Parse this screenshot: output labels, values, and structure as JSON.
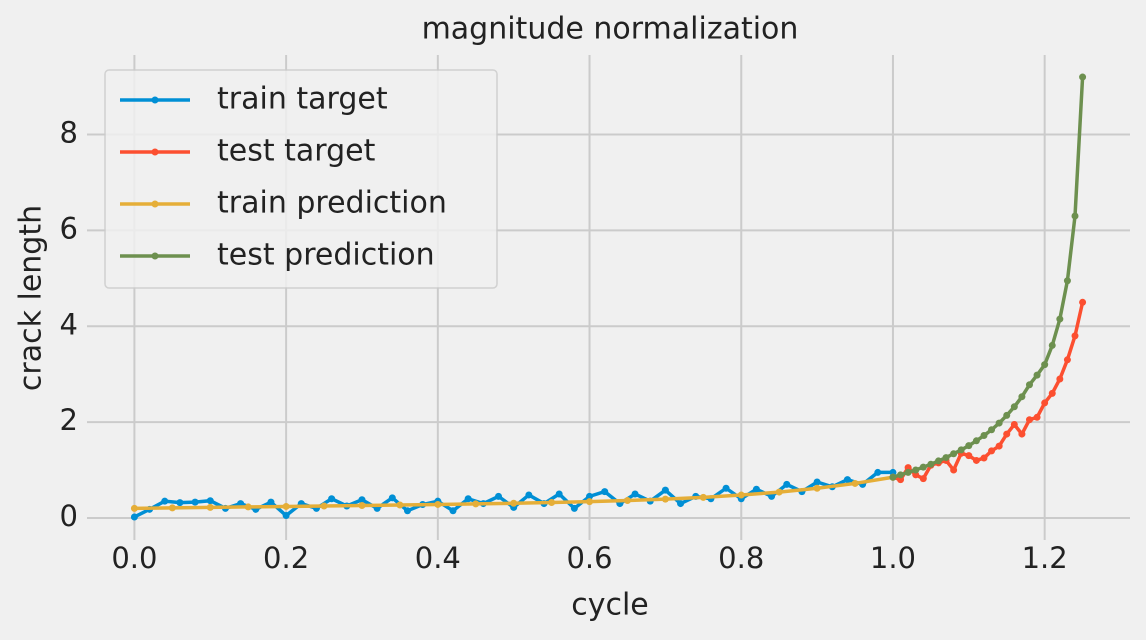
{
  "chart_data": {
    "type": "line",
    "title": "magnitude normalization",
    "x_label": "cycle",
    "y_label": "crack length",
    "xlim": [
      -0.0625,
      1.3125
    ],
    "ylim": [
      -0.46,
      9.66
    ],
    "xticks": [
      {
        "value": 0,
        "label": "0.0"
      },
      0.2,
      0.4,
      0.6,
      0.8,
      {
        "value": 1,
        "label": "1.0"
      },
      1.2
    ],
    "yticks": [
      0,
      2,
      4,
      6,
      8
    ],
    "grid": true,
    "legend": "upper left",
    "series": [
      {
        "name": "train target",
        "color": "#008fd5",
        "x": [
          0,
          0.02,
          0.04,
          0.06,
          0.08,
          0.1,
          0.12,
          0.14,
          0.16,
          0.18,
          0.2,
          0.22,
          0.24,
          0.26,
          0.28,
          0.3,
          0.32,
          0.34,
          0.36,
          0.38,
          0.4,
          0.42,
          0.44,
          0.46,
          0.48,
          0.5,
          0.52,
          0.54,
          0.56,
          0.58,
          0.6,
          0.62,
          0.64,
          0.66,
          0.68,
          0.7,
          0.72,
          0.74,
          0.76,
          0.78,
          0.8,
          0.82,
          0.84,
          0.86,
          0.88,
          0.9,
          0.92,
          0.94,
          0.96,
          0.98,
          1.0
        ],
        "values": [
          0.02,
          0.18,
          0.35,
          0.32,
          0.33,
          0.36,
          0.2,
          0.3,
          0.18,
          0.33,
          0.05,
          0.3,
          0.2,
          0.4,
          0.25,
          0.38,
          0.2,
          0.42,
          0.15,
          0.28,
          0.35,
          0.15,
          0.4,
          0.3,
          0.45,
          0.22,
          0.48,
          0.3,
          0.5,
          0.2,
          0.45,
          0.55,
          0.3,
          0.5,
          0.35,
          0.58,
          0.3,
          0.45,
          0.4,
          0.62,
          0.4,
          0.6,
          0.45,
          0.7,
          0.55,
          0.75,
          0.65,
          0.8,
          0.7,
          0.95,
          0.95
        ]
      },
      {
        "name": "test target",
        "color": "#fc4f30",
        "x": [
          1.0,
          1.01,
          1.02,
          1.03,
          1.04,
          1.05,
          1.06,
          1.07,
          1.08,
          1.09,
          1.1,
          1.11,
          1.12,
          1.13,
          1.14,
          1.15,
          1.16,
          1.17,
          1.18,
          1.19,
          1.2,
          1.21,
          1.22,
          1.23,
          1.24,
          1.25
        ],
        "values": [
          0.85,
          0.8,
          1.05,
          0.9,
          0.82,
          1.1,
          1.15,
          1.2,
          1.0,
          1.35,
          1.3,
          1.2,
          1.25,
          1.4,
          1.5,
          1.75,
          1.95,
          1.75,
          2.05,
          2.1,
          2.4,
          2.6,
          2.9,
          3.3,
          3.8,
          4.5
        ]
      },
      {
        "name": "train prediction",
        "color": "#e5ae38",
        "x": [
          0,
          0.05,
          0.1,
          0.15,
          0.2,
          0.25,
          0.3,
          0.35,
          0.4,
          0.45,
          0.5,
          0.55,
          0.6,
          0.65,
          0.7,
          0.75,
          0.8,
          0.85,
          0.9,
          0.95,
          1.0
        ],
        "values": [
          0.2,
          0.21,
          0.22,
          0.23,
          0.24,
          0.25,
          0.26,
          0.27,
          0.282,
          0.294,
          0.307,
          0.322,
          0.341,
          0.363,
          0.393,
          0.43,
          0.478,
          0.54,
          0.62,
          0.72,
          0.85
        ]
      },
      {
        "name": "test prediction",
        "color": "#6d904f",
        "x": [
          1.0,
          1.01,
          1.02,
          1.03,
          1.04,
          1.05,
          1.06,
          1.07,
          1.08,
          1.09,
          1.1,
          1.11,
          1.12,
          1.13,
          1.14,
          1.15,
          1.16,
          1.17,
          1.18,
          1.19,
          1.2,
          1.21,
          1.22,
          1.23,
          1.24,
          1.25
        ],
        "values": [
          0.85,
          0.9,
          0.95,
          1.0,
          1.06,
          1.12,
          1.19,
          1.26,
          1.34,
          1.42,
          1.51,
          1.61,
          1.72,
          1.84,
          1.98,
          2.14,
          2.32,
          2.53,
          2.78,
          2.98,
          3.2,
          3.6,
          4.15,
          4.95,
          6.3,
          9.2
        ]
      }
    ]
  }
}
